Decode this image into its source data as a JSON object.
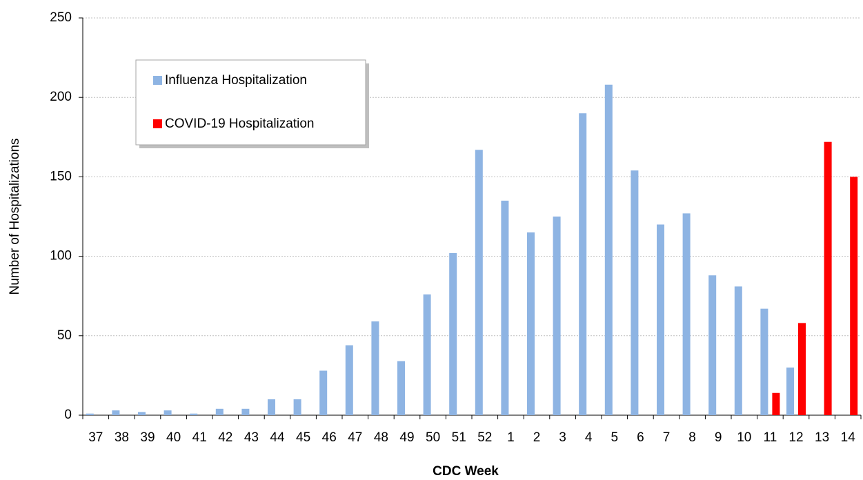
{
  "chart_data": {
    "type": "bar",
    "y_label": "Number of Hospitalizations",
    "x_label": "CDC Week",
    "categories": [
      "37",
      "38",
      "39",
      "40",
      "41",
      "42",
      "43",
      "44",
      "45",
      "46",
      "47",
      "48",
      "49",
      "50",
      "51",
      "52",
      "1",
      "2",
      "3",
      "4",
      "5",
      "6",
      "7",
      "8",
      "9",
      "10",
      "11",
      "12",
      "13",
      "14"
    ],
    "series": [
      {
        "name": "Influenza Hospitalization",
        "color": "#8eb4e3",
        "values": [
          1,
          3,
          2,
          3,
          1,
          4,
          4,
          10,
          10,
          28,
          44,
          59,
          34,
          76,
          102,
          167,
          135,
          115,
          125,
          190,
          208,
          154,
          120,
          127,
          88,
          81,
          67,
          30,
          null,
          null
        ]
      },
      {
        "name": "COVID-19 Hospitalization",
        "color": "#ff0000",
        "values": [
          null,
          null,
          null,
          null,
          null,
          null,
          null,
          null,
          null,
          null,
          null,
          null,
          null,
          null,
          null,
          null,
          null,
          null,
          null,
          null,
          null,
          null,
          null,
          null,
          null,
          null,
          14,
          58,
          172,
          150
        ]
      }
    ],
    "ylim": [
      0,
      250
    ],
    "yticks": [
      0,
      50,
      100,
      150,
      200,
      250
    ],
    "grid": true
  }
}
